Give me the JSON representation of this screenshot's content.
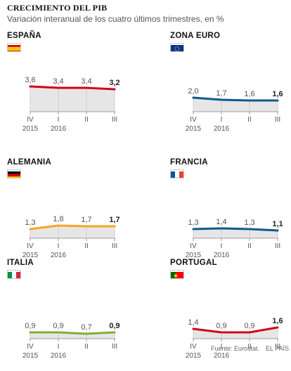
{
  "header": {
    "title": "CRECIMIENTO DEL PIB",
    "subtitle": "Variación interanual de los cuatro últimos trimestres, en %"
  },
  "footer": {
    "source": "Fuente: Eurostat.",
    "brand": "EL PAÍS"
  },
  "colors": {
    "espana": "#d0021b",
    "zona_euro": "#0b5a8e",
    "alemania": "#f5a623",
    "francia": "#0b5a8e",
    "italia": "#7fb03a",
    "portugal": "#d0021b",
    "axis": "#9e9e9e",
    "grid": "#cfcfcf",
    "panel_fill": "#e6e6e6"
  },
  "chart_data": [
    {
      "type": "line",
      "title": "ESPAÑA",
      "flag": "spain-flag",
      "categories": [
        "IV",
        "I",
        "II",
        "III"
      ],
      "year_labels": [
        "2015",
        "2016",
        "",
        ""
      ],
      "values": [
        3.6,
        3.4,
        3.4,
        3.2
      ],
      "value_labels": [
        "3,6",
        "3,4",
        "3,4",
        "3,2"
      ],
      "ylim": [
        0,
        4
      ],
      "color": "#d0021b"
    },
    {
      "type": "line",
      "title": "ZONA EURO",
      "flag": "eu-flag",
      "categories": [
        "IV",
        "I",
        "II",
        "III"
      ],
      "year_labels": [
        "2015",
        "2016",
        "",
        ""
      ],
      "values": [
        2.0,
        1.7,
        1.6,
        1.6
      ],
      "value_labels": [
        "2,0",
        "1,7",
        "1,6",
        "1,6"
      ],
      "ylim": [
        0,
        4
      ],
      "color": "#0b5a8e"
    },
    {
      "type": "line",
      "title": "ALEMANIA",
      "flag": "germany-flag",
      "categories": [
        "IV",
        "I",
        "II",
        "III"
      ],
      "year_labels": [
        "2015",
        "2016",
        "",
        ""
      ],
      "values": [
        1.3,
        1.8,
        1.7,
        1.7
      ],
      "value_labels": [
        "1,3",
        "1,8",
        "1,7",
        "1,7"
      ],
      "ylim": [
        0,
        4
      ],
      "color": "#f5a623"
    },
    {
      "type": "line",
      "title": "FRANCIA",
      "flag": "france-flag",
      "categories": [
        "IV",
        "I",
        "II",
        "III"
      ],
      "year_labels": [
        "2015",
        "2016",
        "",
        ""
      ],
      "values": [
        1.3,
        1.4,
        1.3,
        1.1
      ],
      "value_labels": [
        "1,3",
        "1,4",
        "1,3",
        "1,1"
      ],
      "ylim": [
        0,
        4
      ],
      "color": "#0b5a8e"
    },
    {
      "type": "line",
      "title": "ITALIA",
      "flag": "italy-flag",
      "categories": [
        "IV",
        "I",
        "II",
        "III"
      ],
      "year_labels": [
        "2015",
        "2016",
        "",
        ""
      ],
      "values": [
        0.9,
        0.9,
        0.7,
        0.9
      ],
      "value_labels": [
        "0,9",
        "0,9",
        "0,7",
        "0,9"
      ],
      "ylim": [
        0,
        4
      ],
      "color": "#7fb03a"
    },
    {
      "type": "line",
      "title": "PORTUGAL",
      "flag": "portugal-flag",
      "categories": [
        "IV",
        "I",
        "II",
        "III"
      ],
      "year_labels": [
        "2015",
        "2016",
        "",
        ""
      ],
      "values": [
        1.4,
        0.9,
        0.9,
        1.6
      ],
      "value_labels": [
        "1,4",
        "0,9",
        "0,9",
        "1,6"
      ],
      "ylim": [
        0,
        4
      ],
      "color": "#d0021b"
    }
  ]
}
